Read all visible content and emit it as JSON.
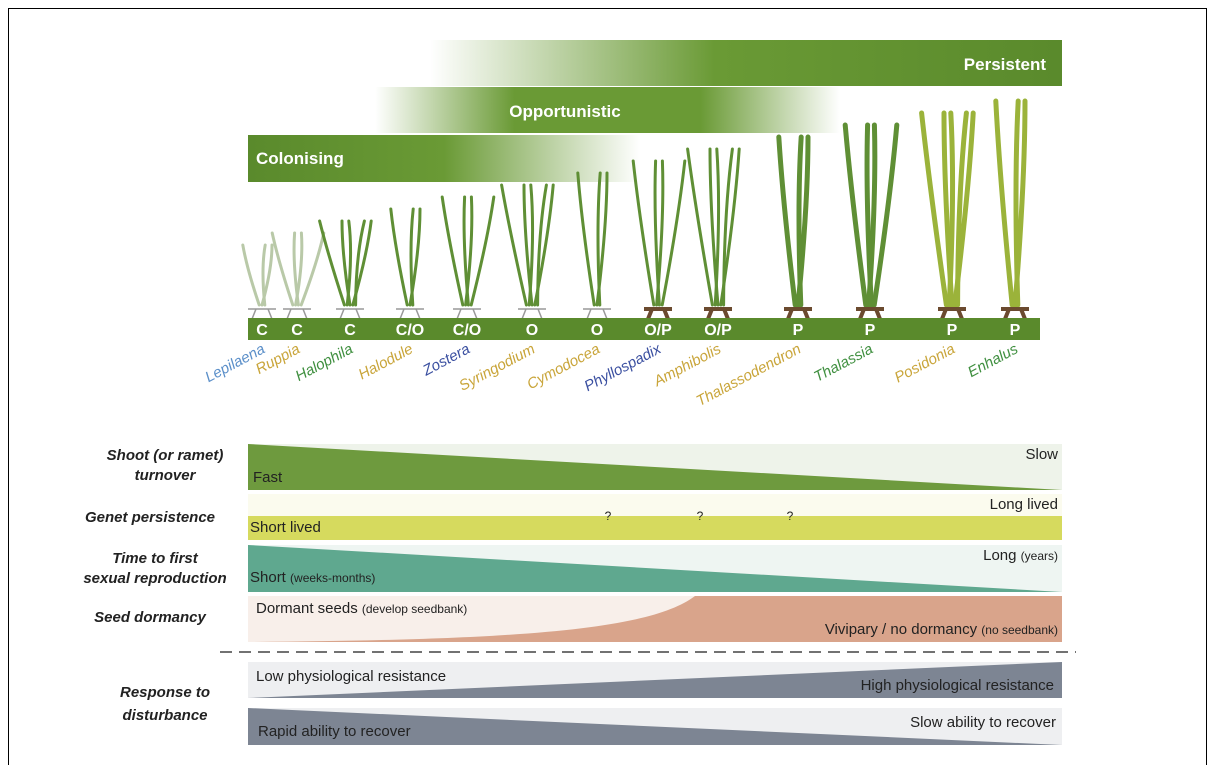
{
  "strategies": {
    "persistent": "Persistent",
    "opportunistic": "Opportunistic",
    "colonising": "Colonising"
  },
  "genera": [
    {
      "code": "C",
      "name": "Lepilaena",
      "color": "#5b8fc9"
    },
    {
      "code": "C",
      "name": "Ruppia",
      "color": "#c9a53a"
    },
    {
      "code": "C",
      "name": "Halophila",
      "color": "#3f8f3f"
    },
    {
      "code": "C/O",
      "name": "Halodule",
      "color": "#c9a53a"
    },
    {
      "code": "C/O",
      "name": "Zostera",
      "color": "#3a4fa0"
    },
    {
      "code": "O",
      "name": "Syringodium",
      "color": "#c9a53a"
    },
    {
      "code": "O",
      "name": "Cymodocea",
      "color": "#c9a53a"
    },
    {
      "code": "O/P",
      "name": "Phyllospadix",
      "color": "#3a4fa0"
    },
    {
      "code": "O/P",
      "name": "Amphibolis",
      "color": "#c9a53a"
    },
    {
      "code": "P",
      "name": "Thalassodendron",
      "color": "#c9a53a"
    },
    {
      "code": "P",
      "name": "Thalassia",
      "color": "#3f8f3f"
    },
    {
      "code": "P",
      "name": "Posidonia",
      "color": "#c9a53a"
    },
    {
      "code": "P",
      "name": "Enhalus",
      "color": "#3f8f3f"
    }
  ],
  "traits": {
    "shoot": {
      "label": [
        "Shoot (or ramet)",
        "turnover"
      ],
      "left": "Fast",
      "right": "Slow"
    },
    "genet": {
      "label": [
        "Genet persistence"
      ],
      "left": "Short lived",
      "right": "Long lived",
      "unknown": [
        "?",
        "?",
        "?"
      ]
    },
    "sexual": {
      "label": [
        "Time to first",
        "sexual reproduction"
      ],
      "left": "Short",
      "left_note": "(weeks-months)",
      "right": "Long",
      "right_note": "(years)"
    },
    "seed": {
      "label": [
        "Seed dormancy"
      ],
      "left": "Dormant seeds",
      "left_note": "(develop seedbank)",
      "right": "Vivipary / no dormancy",
      "right_note": "(no seedbank)"
    }
  },
  "response": {
    "label": [
      "Response to",
      "disturbance"
    ],
    "resistance": {
      "left": "Low physiological resistance",
      "right": "High physiological resistance"
    },
    "recovery": {
      "left": "Rapid ability to recover",
      "right": "Slow ability to recover"
    }
  }
}
